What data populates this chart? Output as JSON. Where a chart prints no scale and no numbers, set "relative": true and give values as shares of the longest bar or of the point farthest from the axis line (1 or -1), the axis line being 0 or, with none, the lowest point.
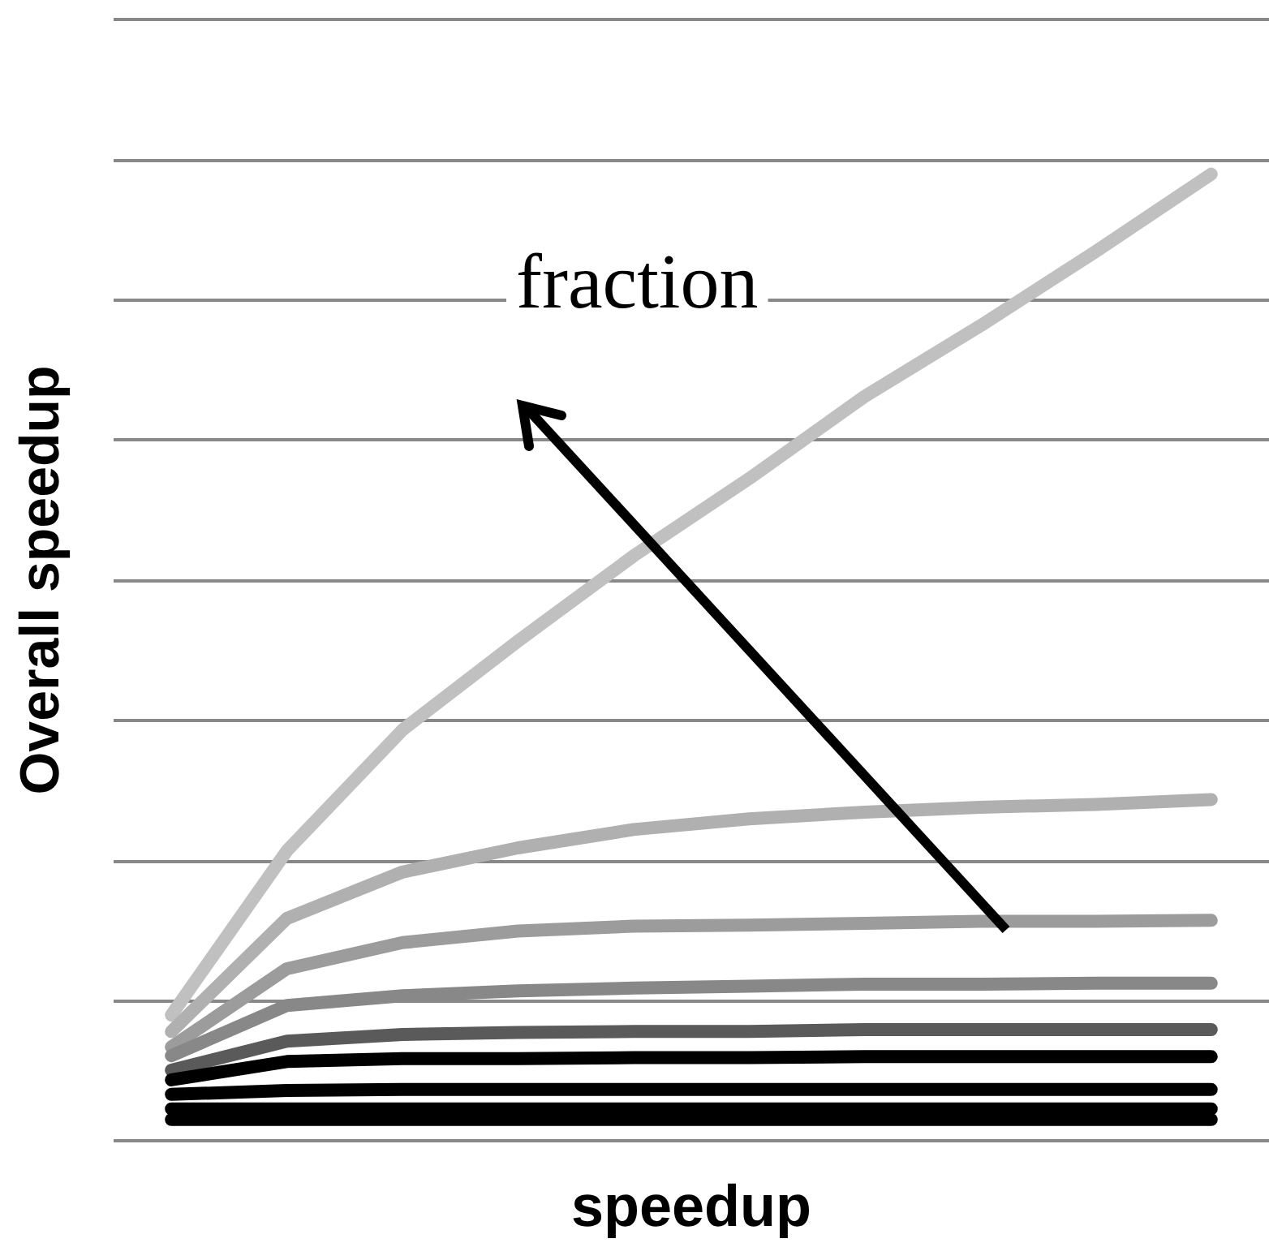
{
  "chart_data": {
    "type": "line",
    "relative": true,
    "xlabel": "speedup",
    "ylabel": "Overall speedup",
    "annotations": [
      "fraction"
    ],
    "grid": "y",
    "marker": "none",
    "line_style": "solid",
    "categories": [
      null,
      null,
      null,
      null,
      null,
      null,
      null,
      null,
      null,
      null
    ],
    "series": [
      {
        "color": "#c0c0c0",
        "values": [
          0.13,
          0.3,
          0.425,
          0.517,
          0.605,
          0.685,
          0.77,
          0.843,
          0.92,
          1
        ]
      },
      {
        "color": "#b0b0b0",
        "values": [
          0.113,
          0.23,
          0.278,
          0.303,
          0.322,
          0.333,
          0.34,
          0.345,
          0.348,
          0.353
        ]
      },
      {
        "color": "#9c9c9c",
        "values": [
          0.097,
          0.178,
          0.205,
          0.217,
          0.222,
          0.223,
          0.225,
          0.227,
          0.227,
          0.228
        ]
      },
      {
        "color": "#888888",
        "values": [
          0.088,
          0.14,
          0.15,
          0.155,
          0.158,
          0.16,
          0.162,
          0.162,
          0.163,
          0.163
        ]
      },
      {
        "color": "#5a5a5a",
        "values": [
          0.073,
          0.103,
          0.11,
          0.112,
          0.113,
          0.113,
          0.115,
          0.115,
          0.115,
          0.115
        ]
      },
      {
        "color": "#000000",
        "values": [
          0.063,
          0.082,
          0.085,
          0.085,
          0.086,
          0.086,
          0.087,
          0.087,
          0.087,
          0.087
        ]
      },
      {
        "color": "#000000",
        "values": [
          0.048,
          0.052,
          0.053,
          0.053,
          0.053,
          0.053,
          0.053,
          0.053,
          0.053,
          0.053
        ]
      },
      {
        "color": "#000000",
        "values": [
          0.033,
          0.033,
          0.033,
          0.033,
          0.033,
          0.033,
          0.033,
          0.033,
          0.033,
          0.033
        ]
      },
      {
        "color": "#000000",
        "values": [
          0.022,
          0.022,
          0.022,
          0.022,
          0.022,
          0.022,
          0.022,
          0.022,
          0.022,
          0.022
        ]
      }
    ]
  }
}
